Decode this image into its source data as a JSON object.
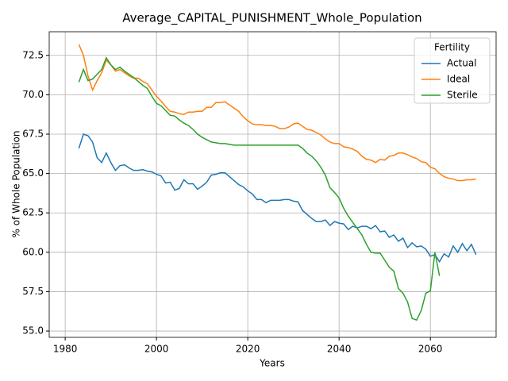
{
  "chart_data": {
    "type": "line",
    "title": "Average_CAPITAL_PUNISHMENT_Whole_Population",
    "xlabel": "Years",
    "ylabel": "% of Whole Population",
    "x": [
      1983,
      1984,
      1985,
      1986,
      1987,
      1988,
      1989,
      1990,
      1991,
      1992,
      1993,
      1994,
      1995,
      1996,
      1997,
      1998,
      1999,
      2000,
      2001,
      2002,
      2003,
      2004,
      2005,
      2006,
      2007,
      2008,
      2009,
      2010,
      2011,
      2012,
      2013,
      2014,
      2015,
      2016,
      2017,
      2018,
      2019,
      2020,
      2021,
      2022,
      2023,
      2024,
      2025,
      2026,
      2027,
      2028,
      2029,
      2030,
      2031,
      2032,
      2033,
      2034,
      2035,
      2036,
      2037,
      2038,
      2039,
      2040,
      2041,
      2042,
      2043,
      2044,
      2045,
      2046,
      2047,
      2048,
      2049,
      2050,
      2051,
      2052,
      2053,
      2054,
      2055,
      2056,
      2057,
      2058,
      2059,
      2060,
      2061,
      2062,
      2063,
      2064,
      2065,
      2066,
      2067,
      2068,
      2069,
      2070
    ],
    "series": [
      {
        "name": "Actual",
        "color": "#1f77b4",
        "values": [
          66.6,
          67.5,
          67.4,
          67.0,
          66.0,
          65.7,
          66.3,
          65.7,
          65.2,
          65.5,
          65.55,
          65.35,
          65.2,
          65.2,
          65.25,
          65.15,
          65.1,
          64.95,
          64.85,
          64.4,
          64.45,
          63.95,
          64.05,
          64.6,
          64.35,
          64.35,
          64.0,
          64.2,
          64.45,
          64.9,
          64.95,
          65.05,
          65.05,
          64.8,
          64.55,
          64.3,
          64.15,
          63.9,
          63.7,
          63.35,
          63.35,
          63.15,
          63.3,
          63.3,
          63.3,
          63.35,
          63.35,
          63.25,
          63.2,
          62.65,
          62.4,
          62.15,
          61.95,
          61.95,
          62.05,
          61.7,
          61.95,
          61.85,
          61.8,
          61.45,
          61.65,
          61.55,
          61.65,
          61.65,
          61.5,
          61.7,
          61.3,
          61.35,
          60.95,
          61.1,
          60.7,
          60.9,
          60.3,
          60.6,
          60.35,
          60.4,
          60.2,
          59.75,
          59.85,
          59.4,
          59.9,
          59.7,
          60.4,
          60.0,
          60.55,
          60.1,
          60.5,
          59.85
        ]
      },
      {
        "name": "Ideal",
        "color": "#ff7f0e",
        "values": [
          73.2,
          72.5,
          71.2,
          70.3,
          70.9,
          71.4,
          72.2,
          71.9,
          71.5,
          71.6,
          71.4,
          71.2,
          71.05,
          71.05,
          70.85,
          70.7,
          70.3,
          69.9,
          69.6,
          69.25,
          68.95,
          68.9,
          68.8,
          68.75,
          68.9,
          68.9,
          68.95,
          68.95,
          69.2,
          69.2,
          69.5,
          69.5,
          69.55,
          69.35,
          69.15,
          68.95,
          68.6,
          68.35,
          68.15,
          68.1,
          68.1,
          68.05,
          68.05,
          68.0,
          67.85,
          67.85,
          67.95,
          68.15,
          68.2,
          68.0,
          67.8,
          67.75,
          67.6,
          67.45,
          67.2,
          67.0,
          66.9,
          66.9,
          66.7,
          66.65,
          66.55,
          66.4,
          66.1,
          65.9,
          65.85,
          65.7,
          65.9,
          65.85,
          66.1,
          66.15,
          66.3,
          66.3,
          66.2,
          66.05,
          65.95,
          65.75,
          65.7,
          65.4,
          65.3,
          65.0,
          64.8,
          64.7,
          64.65,
          64.55,
          64.55,
          64.6,
          64.6,
          64.65
        ]
      },
      {
        "name": "Sterile",
        "color": "#2ca02c",
        "values": [
          70.8,
          71.6,
          70.9,
          71.0,
          71.3,
          71.6,
          72.35,
          71.9,
          71.6,
          71.75,
          71.5,
          71.3,
          71.1,
          70.85,
          70.6,
          70.4,
          69.9,
          69.45,
          69.3,
          69.0,
          68.7,
          68.65,
          68.4,
          68.2,
          68.05,
          67.8,
          67.5,
          67.3,
          67.15,
          67.0,
          66.95,
          66.9,
          66.9,
          66.85,
          66.8,
          66.8,
          66.8,
          66.8,
          66.8,
          66.8,
          66.8,
          66.8,
          66.8,
          66.8,
          66.8,
          66.8,
          66.8,
          66.8,
          66.8,
          66.6,
          66.3,
          66.1,
          65.8,
          65.4,
          64.9,
          64.1,
          63.8,
          63.45,
          62.8,
          62.3,
          61.9,
          61.5,
          61.1,
          60.5,
          60.0,
          59.95,
          59.95,
          59.5,
          59.05,
          58.8,
          57.7,
          57.4,
          56.85,
          55.8,
          55.7,
          56.3,
          57.4,
          57.55,
          60.0,
          58.5,
          null,
          null,
          null,
          null,
          null,
          null,
          null,
          null
        ]
      }
    ],
    "legend_title": "Fertility",
    "legend": "upper right",
    "grid": true,
    "xlim": [
      1976.5,
      2074.4
    ],
    "xticks": [
      1980,
      2000,
      2020,
      2040,
      2060
    ],
    "ylim": [
      54.6,
      74.0
    ],
    "yticks": [
      {
        "value": 55,
        "label": "55.0"
      },
      57.5,
      {
        "value": 60,
        "label": "60.0"
      },
      62.5,
      {
        "value": 65,
        "label": "65.0"
      },
      67.5,
      {
        "value": 70,
        "label": "70.0"
      },
      72.5
    ]
  }
}
